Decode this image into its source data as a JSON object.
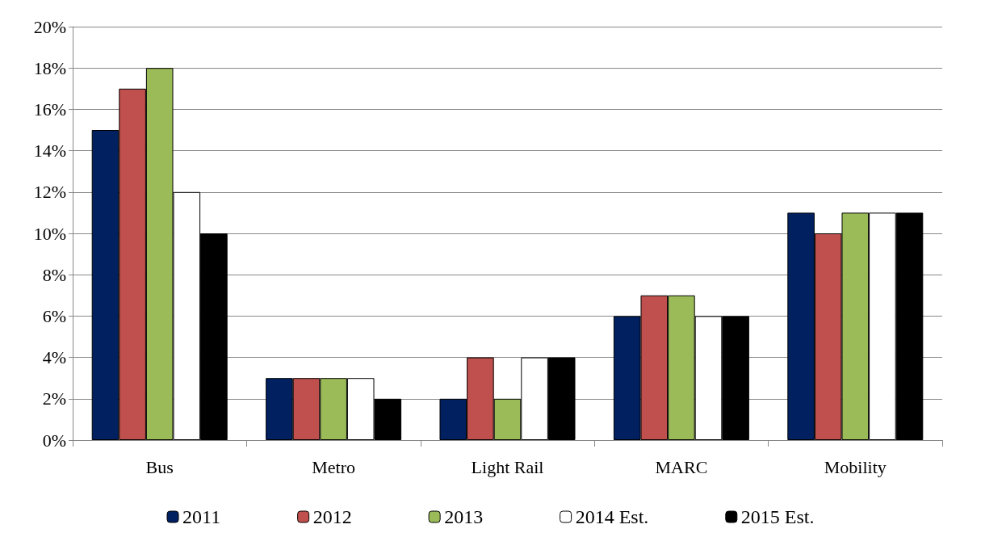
{
  "chart_data": {
    "type": "bar",
    "categories": [
      "Bus",
      "Metro",
      "Light Rail",
      "MARC",
      "Mobility"
    ],
    "series": [
      {
        "name": "2011",
        "color": "#002060",
        "values": [
          15,
          3,
          2,
          6,
          11
        ]
      },
      {
        "name": "2012",
        "color": "#c0504d",
        "values": [
          17,
          3,
          4,
          7,
          10
        ]
      },
      {
        "name": "2013",
        "color": "#9bbb59",
        "values": [
          18,
          3,
          2,
          7,
          11
        ]
      },
      {
        "name": "2014 Est.",
        "color": "#ffffff",
        "values": [
          12,
          3,
          4,
          6,
          11
        ]
      },
      {
        "name": "2015 Est.",
        "color": "#000000",
        "values": [
          10,
          2,
          4,
          6,
          11
        ]
      }
    ],
    "ylim": [
      0,
      20
    ],
    "yticks": [
      {
        "value": 0,
        "label": "0%"
      },
      {
        "value": 2,
        "label": "2%"
      },
      {
        "value": 4,
        "label": "4%"
      },
      {
        "value": 6,
        "label": "6%"
      },
      {
        "value": 8,
        "label": "8%"
      },
      {
        "value": 10,
        "label": "10%"
      },
      {
        "value": 12,
        "label": "12%"
      },
      {
        "value": 14,
        "label": "14%"
      },
      {
        "value": 16,
        "label": "16%"
      },
      {
        "value": 18,
        "label": "18%"
      },
      {
        "value": 20,
        "label": "20%"
      }
    ],
    "grid": "y",
    "legend": "bottom"
  }
}
